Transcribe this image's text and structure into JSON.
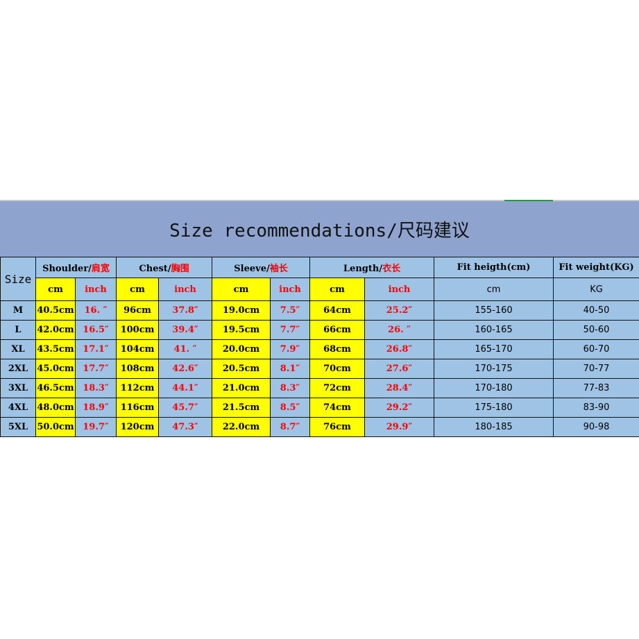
{
  "title": "Size recommendations/尺码建议",
  "header": {
    "size": "Size",
    "groups": [
      {
        "en": "Shoulder/",
        "zh": "肩宽"
      },
      {
        "en": "Chest/",
        "zh": "胸围"
      },
      {
        "en": "Sleeve/",
        "zh": "袖长"
      },
      {
        "en": "Length/",
        "zh": "衣长"
      },
      {
        "en": "Fit heigth(cm)",
        "zh": ""
      },
      {
        "en": "Fit weight(KG)",
        "zh": ""
      }
    ],
    "units": {
      "cm": "cm",
      "inch": "inch",
      "fit_height": "cm",
      "fit_weight": "KG"
    }
  },
  "rows": [
    [
      "M",
      "40.5cm",
      "16. ″",
      "96cm",
      "37.8″",
      "19.0cm",
      "7.5″",
      "64cm",
      "25.2″",
      "155-160",
      "40-50"
    ],
    [
      "L",
      "42.0cm",
      "16.5″",
      "100cm",
      "39.4″",
      "19.5cm",
      "7.7″",
      "66cm",
      "26. ″",
      "160-165",
      "50-60"
    ],
    [
      "XL",
      "43.5cm",
      "17.1″",
      "104cm",
      "41. ″",
      "20.0cm",
      "7.9″",
      "68cm",
      "26.8″",
      "165-170",
      "60-70"
    ],
    [
      "2XL",
      "45.0cm",
      "17.7″",
      "108cm",
      "42.6″",
      "20.5cm",
      "8.1″",
      "70cm",
      "27.6″",
      "170-175",
      "70-77"
    ],
    [
      "3XL",
      "46.5cm",
      "18.3″",
      "112cm",
      "44.1″",
      "21.0cm",
      "8.3″",
      "72cm",
      "28.4″",
      "170-180",
      "77-83"
    ],
    [
      "4XL",
      "48.0cm",
      "18.9″",
      "116cm",
      "45.7″",
      "21.5cm",
      "8.5″",
      "74cm",
      "29.2″",
      "175-180",
      "83-90"
    ],
    [
      "5XL",
      "50.0cm",
      "19.7″",
      "120cm",
      "47.3″",
      "22.0cm",
      "8.7″",
      "76cm",
      "29.9″",
      "180-185",
      "90-98"
    ]
  ],
  "colors": {
    "title_bg": "#8ea3ce",
    "cell_bg": "#9fc3e4",
    "cm_bg": "#ffff00",
    "inch_text": "#ff0000"
  }
}
